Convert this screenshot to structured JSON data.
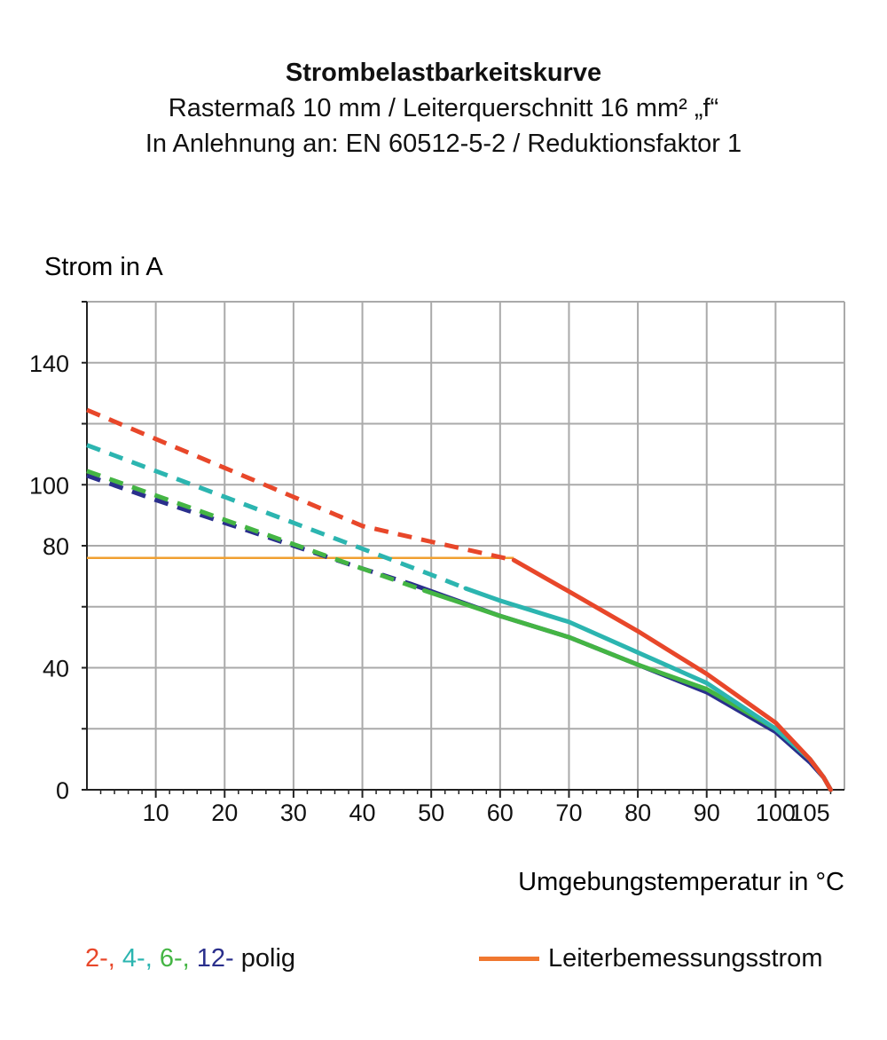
{
  "chart_data": {
    "type": "line",
    "title": "Strombelastbarkeitskurve",
    "subtitle_lines": [
      "Rastermaß 10 mm / Leiterquerschnitt 16 mm² „f“",
      "In Anlehnung an: EN 60512-5-2 / Reduktionsfaktor 1"
    ],
    "ylabel": "Strom in A",
    "xlabel": "Umgebungstemperatur in °C",
    "x_ticks": [
      10,
      20,
      30,
      40,
      50,
      60,
      70,
      80,
      90,
      100,
      105
    ],
    "y_ticks": [
      0,
      40,
      80,
      100,
      140
    ],
    "xlim": [
      0,
      110
    ],
    "ylim": [
      0,
      160
    ],
    "grid": true,
    "series": [
      {
        "name": "2-",
        "color": "#e8472a",
        "dashed_until": 62,
        "points": [
          [
            0,
            124.5
          ],
          [
            10,
            115
          ],
          [
            20,
            105.5
          ],
          [
            30,
            96
          ],
          [
            40,
            86.5
          ],
          [
            50,
            81.3
          ],
          [
            62,
            75.3
          ],
          [
            70,
            65
          ],
          [
            80,
            52
          ],
          [
            90,
            38
          ],
          [
            100,
            22
          ],
          [
            105,
            10
          ],
          [
            107,
            4
          ],
          [
            108,
            0
          ]
        ]
      },
      {
        "name": "4-",
        "color": "#2cb5b0",
        "dashed_until": 55,
        "points": [
          [
            0,
            113
          ],
          [
            10,
            104.5
          ],
          [
            20,
            96
          ],
          [
            30,
            87.5
          ],
          [
            40,
            79
          ],
          [
            50,
            70.5
          ],
          [
            55,
            66
          ],
          [
            60,
            62
          ],
          [
            70,
            55
          ],
          [
            80,
            45
          ],
          [
            90,
            35
          ],
          [
            100,
            20
          ],
          [
            105,
            10
          ],
          [
            107,
            4
          ],
          [
            108,
            0
          ]
        ]
      },
      {
        "name": "6-",
        "color": "#44b544",
        "dashed_until": 49,
        "points": [
          [
            0,
            104.5
          ],
          [
            10,
            96.5
          ],
          [
            20,
            88.5
          ],
          [
            30,
            80.5
          ],
          [
            40,
            72.5
          ],
          [
            49,
            65.3
          ],
          [
            60,
            57
          ],
          [
            70,
            50
          ],
          [
            80,
            41
          ],
          [
            90,
            33
          ],
          [
            100,
            20
          ],
          [
            105,
            10
          ],
          [
            107,
            4
          ],
          [
            108,
            0
          ]
        ]
      },
      {
        "name": "12-",
        "color": "#2a2f8c",
        "dashed_until": 47,
        "points": [
          [
            0,
            103
          ],
          [
            10,
            95
          ],
          [
            20,
            87.5
          ],
          [
            30,
            80
          ],
          [
            40,
            72.5
          ],
          [
            47,
            67.5
          ],
          [
            60,
            57
          ],
          [
            70,
            50
          ],
          [
            80,
            41
          ],
          [
            90,
            32
          ],
          [
            100,
            19
          ],
          [
            105,
            9
          ],
          [
            107,
            4
          ],
          [
            108,
            0
          ]
        ]
      }
    ],
    "rated_current": {
      "name": "Leiterbemessungsstrom",
      "value": 76,
      "color": "#f0a030",
      "legend_color": "#f07830",
      "x_range": [
        0,
        62
      ]
    },
    "legend": {
      "series_suffix": "polig",
      "placement": "bottom"
    }
  }
}
